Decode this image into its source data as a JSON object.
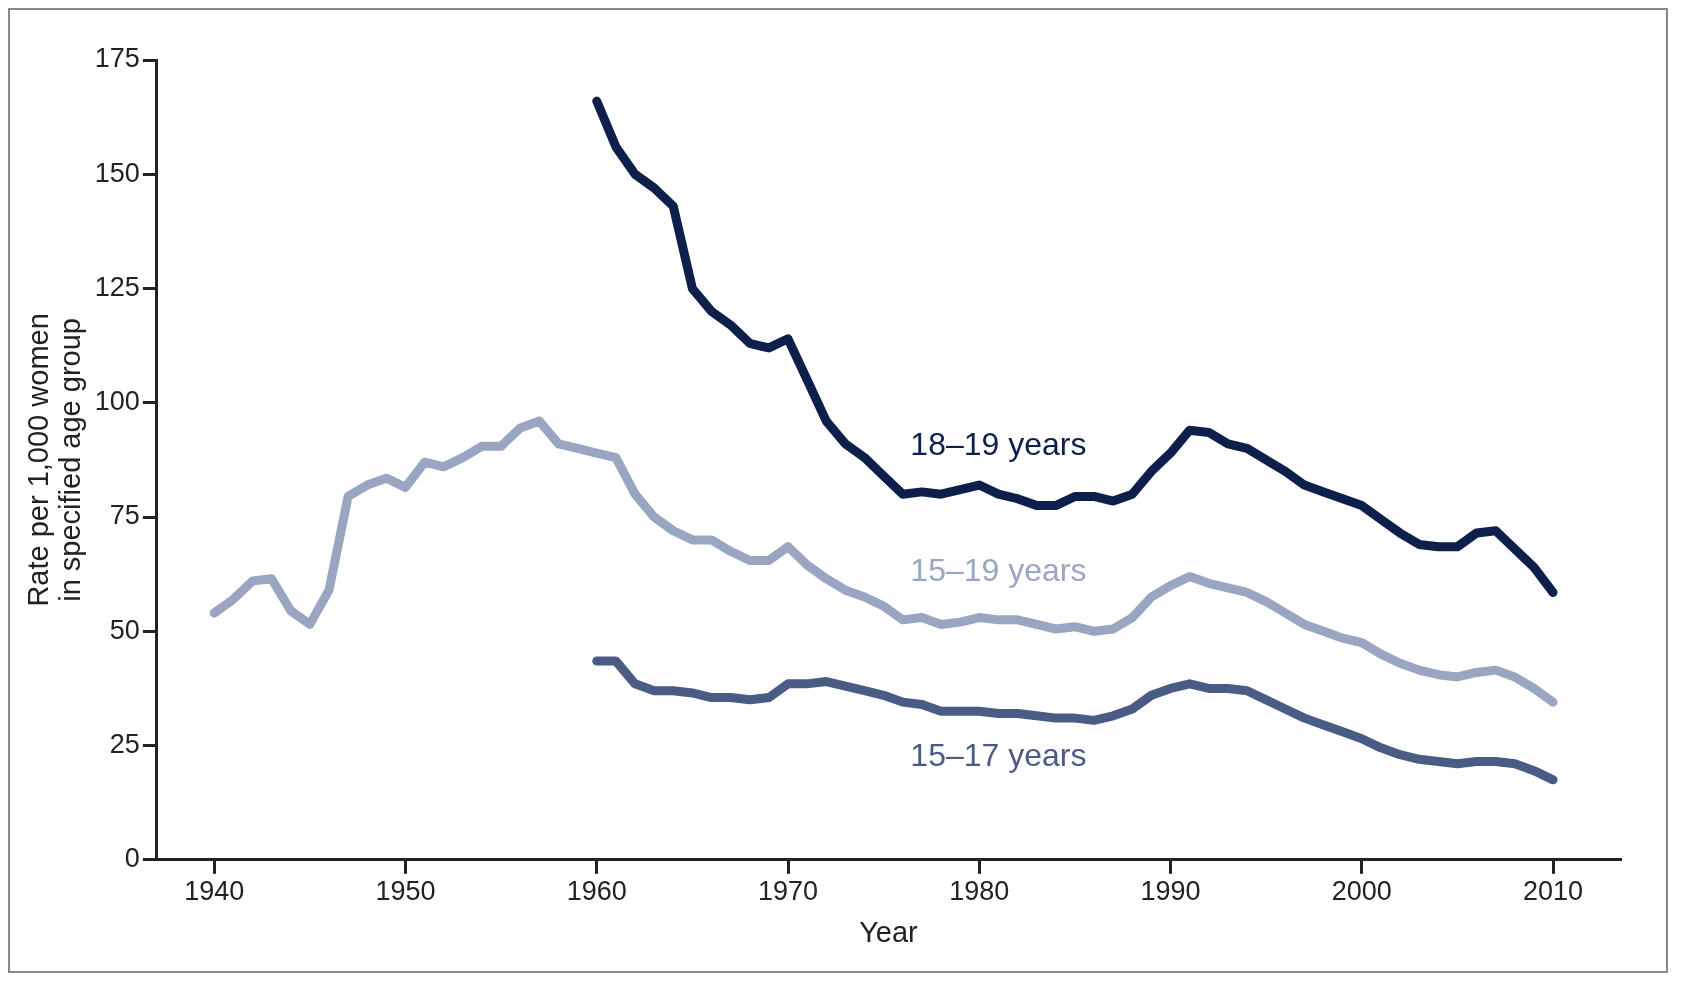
{
  "chart_data": {
    "type": "line",
    "xlabel": "Year",
    "ylabel": "Rate per 1,000 women\nin specified age group",
    "xlim": [
      1937,
      2013.5
    ],
    "xticks": [
      1940,
      1950,
      1960,
      1970,
      1980,
      1990,
      2000,
      2010
    ],
    "ylim": [
      0,
      175
    ],
    "yticks": [
      0,
      25,
      50,
      75,
      100,
      125,
      150,
      175
    ],
    "grid": false,
    "legend": false,
    "marker": "none",
    "line_style": "solid",
    "series": [
      {
        "name": "18–19 years",
        "color": "#0d1f4a",
        "x": [
          1960,
          1961,
          1962,
          1963,
          1964,
          1965,
          1966,
          1967,
          1968,
          1969,
          1970,
          1971,
          1972,
          1973,
          1974,
          1975,
          1976,
          1977,
          1978,
          1979,
          1980,
          1981,
          1982,
          1983,
          1984,
          1985,
          1986,
          1987,
          1988,
          1989,
          1990,
          1991,
          1992,
          1993,
          1994,
          1995,
          1996,
          1997,
          1998,
          1999,
          2000,
          2001,
          2002,
          2003,
          2004,
          2005,
          2006,
          2007,
          2008,
          2009,
          2010
        ],
        "values": [
          166,
          156,
          150,
          147,
          143,
          125,
          120,
          117,
          113,
          112,
          114,
          105,
          96,
          91,
          88,
          84,
          80,
          80.5,
          80,
          81,
          82,
          80,
          79,
          77.5,
          77.5,
          79.5,
          79.5,
          78.5,
          80,
          85,
          89,
          94,
          93.5,
          91,
          90,
          87.5,
          85,
          82,
          80.5,
          79,
          77.5,
          74.5,
          71.5,
          69,
          68.5,
          68.5,
          71.5,
          72,
          68,
          64,
          58.5
        ]
      },
      {
        "name": "15–19 years",
        "color": "#9aa5c2",
        "x": [
          1940,
          1941,
          1942,
          1943,
          1944,
          1945,
          1946,
          1947,
          1948,
          1949,
          1950,
          1951,
          1952,
          1953,
          1954,
          1955,
          1956,
          1957,
          1958,
          1959,
          1960,
          1961,
          1962,
          1963,
          1964,
          1965,
          1966,
          1967,
          1968,
          1969,
          1970,
          1971,
          1972,
          1973,
          1974,
          1975,
          1976,
          1977,
          1978,
          1979,
          1980,
          1981,
          1982,
          1983,
          1984,
          1985,
          1986,
          1987,
          1988,
          1989,
          1990,
          1991,
          1992,
          1993,
          1994,
          1995,
          1996,
          1997,
          1998,
          1999,
          2000,
          2001,
          2002,
          2003,
          2004,
          2005,
          2006,
          2007,
          2008,
          2009,
          2010
        ],
        "values": [
          54,
          57,
          61,
          61.5,
          54.5,
          51.5,
          59,
          79.5,
          82,
          83.5,
          81.5,
          87,
          86,
          88,
          90.5,
          90.5,
          94.5,
          96,
          91,
          90,
          89,
          88,
          80,
          75,
          72,
          70,
          70,
          67.5,
          65.5,
          65.5,
          68.5,
          64.5,
          61.5,
          59,
          57.5,
          55.5,
          52.5,
          53,
          51.5,
          52,
          53,
          52.5,
          52.5,
          51.5,
          50.5,
          51,
          50,
          50.5,
          53,
          57.5,
          60,
          62,
          60.5,
          59.5,
          58.5,
          56.5,
          54,
          51.5,
          50,
          48.5,
          47.5,
          45,
          43,
          41.5,
          40.5,
          40,
          41,
          41.5,
          40,
          37.5,
          34.5
        ]
      },
      {
        "name": "15–17 years",
        "color": "#4a5b85",
        "x": [
          1960,
          1961,
          1962,
          1963,
          1964,
          1965,
          1966,
          1967,
          1968,
          1969,
          1970,
          1971,
          1972,
          1973,
          1974,
          1975,
          1976,
          1977,
          1978,
          1979,
          1980,
          1981,
          1982,
          1983,
          1984,
          1985,
          1986,
          1987,
          1988,
          1989,
          1990,
          1991,
          1992,
          1993,
          1994,
          1995,
          1996,
          1997,
          1998,
          1999,
          2000,
          2001,
          2002,
          2003,
          2004,
          2005,
          2006,
          2007,
          2008,
          2009,
          2010
        ],
        "values": [
          43.5,
          43.5,
          38.5,
          37,
          37,
          36.5,
          35.5,
          35.5,
          35,
          35.5,
          38.5,
          38.5,
          39,
          38,
          37,
          36,
          34.5,
          34,
          32.5,
          32.5,
          32.5,
          32,
          32,
          31.5,
          31,
          31,
          30.5,
          31.5,
          33,
          36,
          37.5,
          38.5,
          37.5,
          37.5,
          37,
          35,
          33,
          31,
          29.5,
          28,
          26.5,
          24.5,
          23,
          22,
          21.5,
          21,
          21.5,
          21.5,
          21,
          19.5,
          17.5
        ]
      }
    ]
  }
}
